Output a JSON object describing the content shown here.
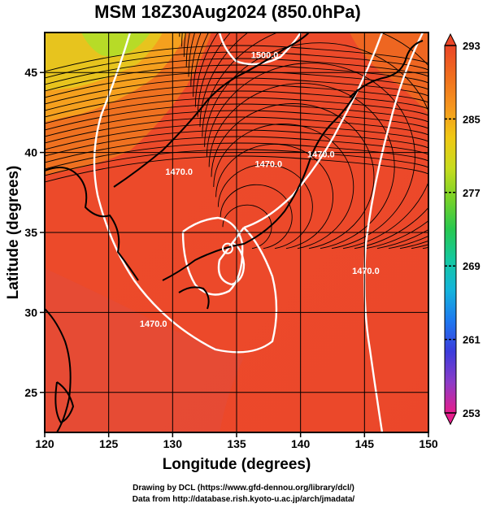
{
  "chart_data": {
    "type": "heatmap",
    "title": "MSM 18Z30Aug2024 (850.0hPa)",
    "xlabel": "Longitude (degrees)",
    "ylabel": "Latitude  (degrees)",
    "xlim": [
      120,
      150
    ],
    "ylim": [
      22.5,
      47.5
    ],
    "xticks": [
      120,
      125,
      130,
      135,
      140,
      145,
      150
    ],
    "yticks": [
      25,
      30,
      35,
      40,
      45
    ],
    "colorbar": {
      "range": [
        253,
        293
      ],
      "tick_labels": [
        "293",
        "285",
        "277",
        "269",
        "261",
        "253"
      ],
      "tick_values": [
        293,
        285,
        277,
        269,
        261,
        253
      ],
      "colors": [
        "#e61e8c",
        "#8c3cc8",
        "#3c3cdc",
        "#1e78f0",
        "#14b4dc",
        "#14c8a0",
        "#28c850",
        "#78d228",
        "#c8dc1e",
        "#f0c814",
        "#f5961e",
        "#f06e1e",
        "#eb4628"
      ]
    },
    "contour_labels": [
      {
        "text": "1470.0",
        "lon": 130.5,
        "lat": 38.6
      },
      {
        "text": "1470.0",
        "lon": 128.5,
        "lat": 29.1
      },
      {
        "text": "1470.0",
        "lon": 141.6,
        "lat": 39.7
      },
      {
        "text": "1470.0",
        "lon": 137.5,
        "lat": 39.1
      },
      {
        "text": "1470.0",
        "lon": 145.1,
        "lat": 32.4
      },
      {
        "text": "1500.0",
        "lon": 137.2,
        "lat": 45.9
      }
    ],
    "typhoon_center": {
      "lon": 134.3,
      "lat": 34.0
    }
  },
  "credits": {
    "line1": "Drawing by DCL (https://www.gfd-dennou.org/library/dcl/)",
    "line2": "Data from http://database.rish.kyoto-u.ac.jp/arch/jmadata/"
  }
}
